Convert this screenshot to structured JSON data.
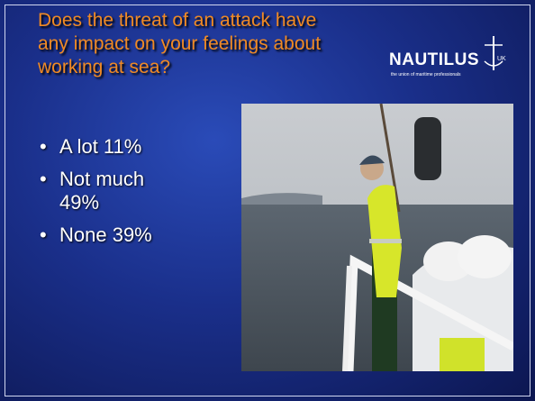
{
  "slide": {
    "title": "Does the threat of an attack have any impact on your feelings about working at sea?",
    "bullets": [
      "A lot 11%",
      "Not much 49%",
      "None 39%"
    ],
    "logo": {
      "name": "NAUTILUS",
      "suffix": "UK",
      "tagline": "the union of maritime professionals"
    }
  }
}
